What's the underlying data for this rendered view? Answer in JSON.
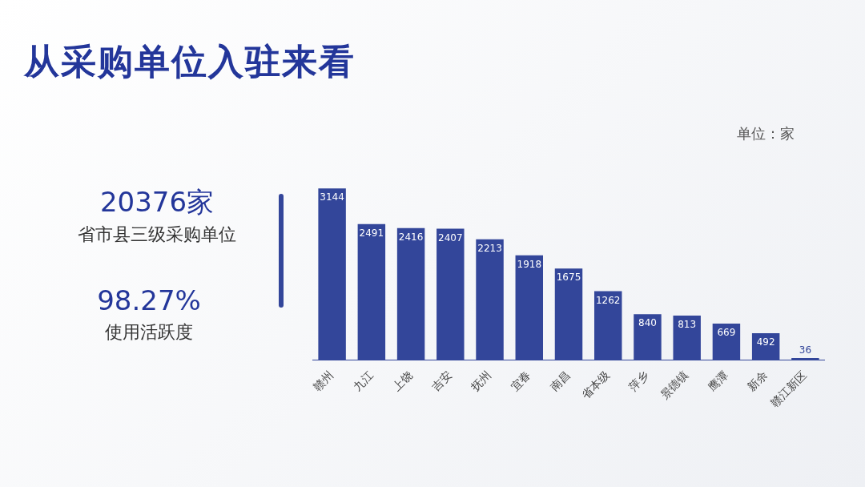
{
  "chart_data": {
    "type": "bar",
    "title": "从采购单位入驻来看",
    "categories": [
      "赣州",
      "九江",
      "上饶",
      "吉安",
      "抚州",
      "宜春",
      "南昌",
      "省本级",
      "萍乡",
      "景德镇",
      "鹰潭",
      "新余",
      "赣江新区"
    ],
    "values": [
      3144,
      2491,
      2416,
      2407,
      2213,
      1918,
      1675,
      1262,
      840,
      813,
      669,
      492,
      36
    ],
    "color": "#33469a",
    "data_labels": true,
    "tick_labels": "x",
    "legend": false,
    "grid": false,
    "annotations": [
      "单位：家",
      "20376家",
      "省市县三级采购单位",
      "98.27%",
      "使用活跃度"
    ]
  }
}
